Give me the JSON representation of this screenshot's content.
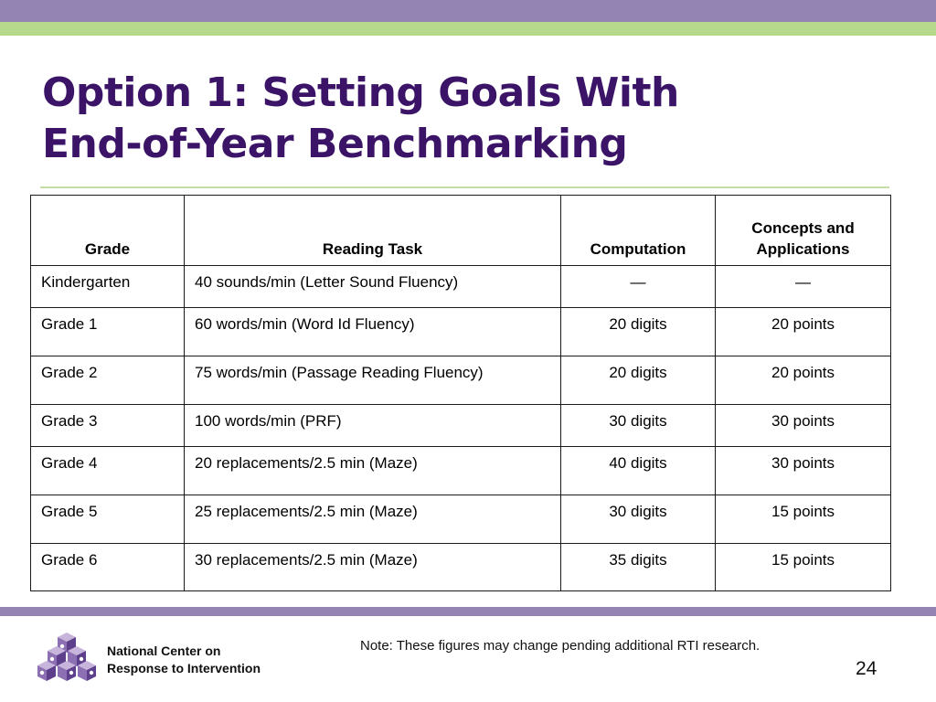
{
  "slide": {
    "title_line1": "Option 1: Setting Goals With",
    "title_line2": "End-of-Year Benchmarking",
    "accent_purple": "#9384b4",
    "accent_green": "#b7d98c",
    "title_color": "#3b1468"
  },
  "table": {
    "headers": [
      "Grade",
      "Reading Task",
      "Computation",
      "Concepts and Applications"
    ],
    "rows": [
      [
        "Kindergarten",
        "40 sounds/min (Letter Sound Fluency)",
        "—",
        "—"
      ],
      [
        "Grade 1",
        "60 words/min (Word Id Fluency)",
        "20 digits",
        "20 points"
      ],
      [
        "Grade 2",
        "75 words/min (Passage Reading Fluency)",
        "20 digits",
        "20 points"
      ],
      [
        "Grade 3",
        "100 words/min (PRF)",
        "30 digits",
        "30 points"
      ],
      [
        "Grade 4",
        "20 replacements/2.5 min (Maze)",
        "40 digits",
        "30 points"
      ],
      [
        "Grade 5",
        "25 replacements/2.5 min (Maze)",
        "30 digits",
        "15 points"
      ],
      [
        "Grade 6",
        "30 replacements/2.5 min (Maze)",
        "35 digits",
        "15 points"
      ]
    ]
  },
  "footer": {
    "org_line1": "National Center on",
    "org_line2": "Response to Intervention",
    "logo_icon": "cube-stack-logo-icon",
    "note": "Note: These figures may change pending additional RTI research.",
    "page_number": "24"
  }
}
